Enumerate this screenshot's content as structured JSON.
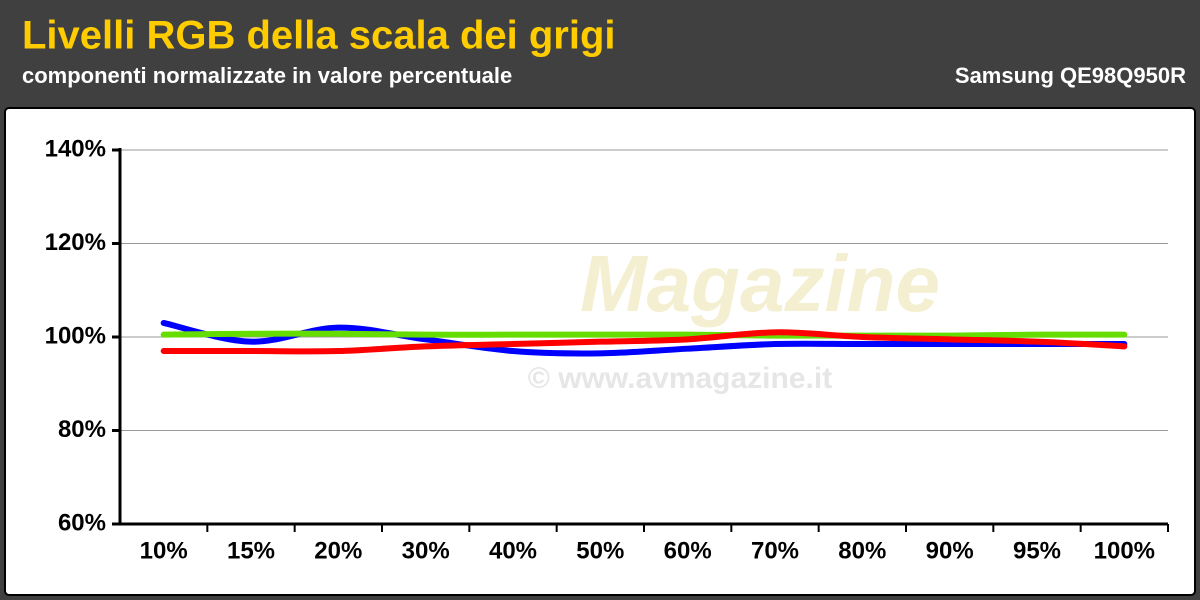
{
  "chart_data": {
    "type": "line",
    "title": "Livelli RGB della scala dei grigi",
    "subtitle": "componenti normalizzate in valore percentuale",
    "device": "Samsung QE98Q950R",
    "watermark": "Magazine",
    "watermark_url": "© www.avmagazine.it",
    "categories": [
      "10%",
      "15%",
      "20%",
      "30%",
      "40%",
      "50%",
      "60%",
      "70%",
      "80%",
      "90%",
      "95%",
      "100%"
    ],
    "series": [
      {
        "color": "#0000ff",
        "values": [
          103,
          99,
          102,
          99.5,
          97,
          96.5,
          97.5,
          98.5,
          98.5,
          98.5,
          98.5,
          98.5
        ]
      },
      {
        "color": "#66dd00",
        "values": [
          100.5,
          100.7,
          100.7,
          100.5,
          100.5,
          100.5,
          100.5,
          100.3,
          100.3,
          100.3,
          100.5,
          100.5
        ]
      },
      {
        "color": "#ff0000",
        "values": [
          97,
          97,
          97,
          98,
          98.5,
          99,
          99.5,
          101,
          100,
          99.5,
          99,
          98
        ]
      }
    ],
    "ylim": [
      60,
      140
    ],
    "yticks": [
      {
        "value": 60,
        "label": "60%"
      },
      {
        "value": 80,
        "label": "80%"
      },
      {
        "value": 100,
        "label": "100%"
      },
      {
        "value": 120,
        "label": "120%"
      },
      {
        "value": 140,
        "label": "140%"
      }
    ],
    "grid": true
  }
}
